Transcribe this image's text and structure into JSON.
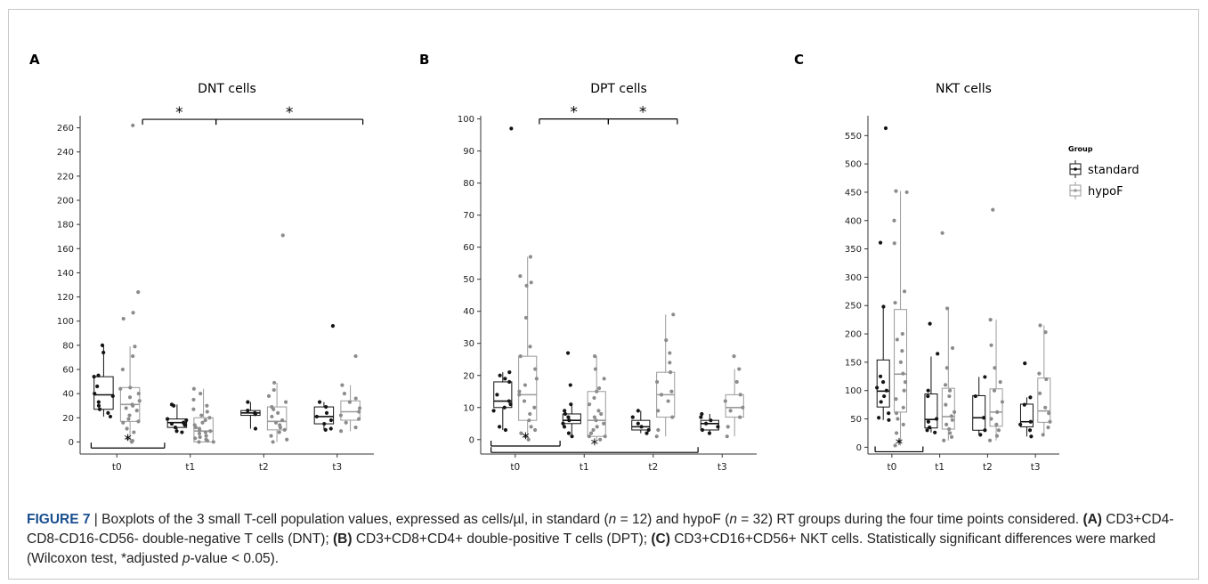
{
  "figure": {
    "caption": {
      "label": "FIGURE 7",
      "separator": " | ",
      "segments": [
        {
          "text": "Boxplots of the 3 small T-cell population values, expressed as cells/µl, in standard (",
          "style": "normal"
        },
        {
          "text": "n",
          "style": "italic"
        },
        {
          "text": " = 12) and hypoF (",
          "style": "normal"
        },
        {
          "text": "n",
          "style": "italic"
        },
        {
          "text": " = 32) RT groups during the four time points considered. ",
          "style": "normal"
        },
        {
          "text": "(A)",
          "style": "bold"
        },
        {
          "text": " CD3+CD4-CD8-CD16-CD56- double-negative T cells (DNT); ",
          "style": "normal"
        },
        {
          "text": "(B)",
          "style": "bold"
        },
        {
          "text": " CD3+CD8+CD4+ double-positive T cells (DPT); ",
          "style": "normal"
        },
        {
          "text": "(C)",
          "style": "bold"
        },
        {
          "text": " CD3+CD16+CD56+ NKT cells. Statistically significant differences were marked (Wilcoxon test, *adjusted ",
          "style": "normal"
        },
        {
          "text": "p",
          "style": "italic"
        },
        {
          "text": "-value < 0.05).",
          "style": "normal"
        }
      ]
    },
    "colors": {
      "standard": "#111111",
      "hypoF": "#9a9a9a",
      "standard_point": "#151515",
      "hypoF_point": "#8c8c8c"
    }
  },
  "chart_data": [
    {
      "type": "boxplot",
      "panel_label": "A",
      "title": "DNT cells",
      "categories": [
        "t0",
        "t1",
        "t2",
        "t3"
      ],
      "ylim": [
        -10,
        270
      ],
      "yticks": [
        0,
        20,
        40,
        60,
        80,
        100,
        120,
        140,
        160,
        180,
        200,
        220,
        240,
        260
      ],
      "series": [
        {
          "name": "standard",
          "boxes": [
            {
              "q1": 27,
              "median": 39,
              "q3": 54,
              "whisker_low": 21,
              "whisker_high": 80,
              "points": [
                80,
                74,
                55,
                54,
                46,
                40,
                38,
                33,
                30,
                27,
                24,
                21
              ]
            },
            {
              "q1": 12,
              "median": 16,
              "q3": 19,
              "whisker_low": 8,
              "whisker_high": 31,
              "points": [
                31,
                30,
                19,
                18,
                16,
                15,
                14,
                12,
                9,
                8
              ]
            },
            {
              "q1": 22,
              "median": 24,
              "q3": 26,
              "whisker_low": 11,
              "whisker_high": 33,
              "points": [
                33,
                26,
                24,
                23,
                11
              ]
            },
            {
              "q1": 15,
              "median": 21,
              "q3": 29,
              "whisker_low": 10,
              "whisker_high": 33,
              "points": [
                96,
                33,
                29,
                24,
                21,
                18,
                15,
                11,
                10
              ]
            }
          ]
        },
        {
          "name": "hypoF",
          "boxes": [
            {
              "q1": 17,
              "median": 31,
              "q3": 45,
              "whisker_low": 0,
              "whisker_high": 79,
              "points": [
                262,
                124,
                107,
                102,
                79,
                71,
                60,
                45,
                44,
                40,
                37,
                34,
                31,
                30,
                28,
                26,
                22,
                19,
                17,
                16,
                11,
                8,
                3,
                1,
                0
              ]
            },
            {
              "q1": 0,
              "median": 9,
              "q3": 20,
              "whisker_low": 0,
              "whisker_high": 44,
              "points": [
                44,
                40,
                35,
                30,
                27,
                25,
                22,
                20,
                18,
                16,
                14,
                12,
                11,
                10,
                9,
                8,
                7,
                5,
                4,
                3,
                2,
                1,
                0,
                0
              ]
            },
            {
              "q1": 10,
              "median": 17,
              "q3": 29,
              "whisker_low": 0,
              "whisker_high": 49,
              "points": [
                171,
                49,
                43,
                38,
                33,
                29,
                27,
                24,
                21,
                18,
                16,
                14,
                12,
                10,
                8,
                5,
                2,
                0
              ]
            },
            {
              "q1": 18,
              "median": 25,
              "q3": 34,
              "whisker_low": 9,
              "whisker_high": 47,
              "points": [
                71,
                47,
                40,
                36,
                33,
                28,
                25,
                22,
                19,
                16,
                12,
                9
              ]
            }
          ]
        }
      ],
      "significance": [
        {
          "y": 267,
          "from": 0.85,
          "to": 1.85,
          "label": "*"
        },
        {
          "y": 267,
          "from": 1.85,
          "to": 3.85,
          "label": "*"
        },
        {
          "y": -5,
          "from": 0.15,
          "to": 1.15,
          "label": "*"
        }
      ],
      "legend": null
    },
    {
      "type": "boxplot",
      "panel_label": "B",
      "title": "DPT cells",
      "categories": [
        "t0",
        "t1",
        "t2",
        "t3"
      ],
      "ylim": [
        -4.5,
        101
      ],
      "yticks": [
        0,
        10,
        20,
        30,
        40,
        50,
        60,
        70,
        80,
        90,
        100
      ],
      "series": [
        {
          "name": "standard",
          "boxes": [
            {
              "q1": 10,
              "median": 12,
              "q3": 18,
              "whisker_low": 3,
              "whisker_high": 21,
              "points": [
                97,
                21,
                20,
                19,
                18,
                14,
                12,
                11,
                10,
                9,
                4,
                3
              ]
            },
            {
              "q1": 5,
              "median": 6,
              "q3": 8,
              "whisker_low": 1,
              "whisker_high": 11,
              "points": [
                27,
                17,
                11,
                9,
                8,
                7,
                6,
                5,
                4,
                2,
                1
              ]
            },
            {
              "q1": 3,
              "median": 4,
              "q3": 6,
              "whisker_low": 2,
              "whisker_high": 9,
              "points": [
                9,
                7,
                5,
                4,
                3,
                2
              ]
            },
            {
              "q1": 3,
              "median": 5,
              "q3": 6,
              "whisker_low": 2,
              "whisker_high": 8,
              "points": [
                8,
                7,
                6,
                5,
                4,
                3,
                2
              ]
            }
          ]
        },
        {
          "name": "hypoF",
          "boxes": [
            {
              "q1": 6,
              "median": 14,
              "q3": 26,
              "whisker_low": 0,
              "whisker_high": 57,
              "points": [
                57,
                51,
                49,
                48,
                38,
                29,
                26,
                22,
                19,
                17,
                15,
                14,
                12,
                10,
                8,
                6,
                4,
                3,
                2,
                1,
                0
              ]
            },
            {
              "q1": 1,
              "median": 6,
              "q3": 15,
              "whisker_low": 0,
              "whisker_high": 26,
              "points": [
                26,
                22,
                19,
                16,
                15,
                13,
                11,
                9,
                8,
                7,
                6,
                5,
                4,
                3,
                2,
                1,
                1,
                0
              ]
            },
            {
              "q1": 7,
              "median": 14,
              "q3": 21,
              "whisker_low": 1,
              "whisker_high": 39,
              "points": [
                39,
                31,
                27,
                24,
                21,
                18,
                15,
                14,
                12,
                9,
                7,
                3,
                1
              ]
            },
            {
              "q1": 7,
              "median": 10,
              "q3": 14,
              "whisker_low": 1,
              "whisker_high": 22,
              "points": [
                26,
                22,
                18,
                14,
                12,
                10,
                9,
                7,
                4,
                1
              ]
            }
          ]
        }
      ],
      "significance": [
        {
          "y": 100,
          "from": 0.85,
          "to": 1.85,
          "label": "*"
        },
        {
          "y": 100,
          "from": 1.85,
          "to": 2.85,
          "label": "*"
        },
        {
          "y": -2,
          "from": 0.15,
          "to": 1.15,
          "label": "*"
        },
        {
          "y": -4,
          "from": 0.15,
          "to": 3.15,
          "label": "*"
        }
      ],
      "legend": null
    },
    {
      "type": "boxplot",
      "panel_label": "C",
      "title": "NKT cells",
      "categories": [
        "t0",
        "t1",
        "t2",
        "t3"
      ],
      "ylim": [
        -12,
        585
      ],
      "yticks": [
        0,
        50,
        100,
        150,
        200,
        250,
        300,
        350,
        400,
        450,
        500,
        550
      ],
      "series": [
        {
          "name": "standard",
          "boxes": [
            {
              "q1": 71,
              "median": 99,
              "q3": 154,
              "whisker_low": 48,
              "whisker_high": 250,
              "points": [
                563,
                361,
                248,
                125,
                115,
                105,
                100,
                90,
                80,
                60,
                52,
                48
              ]
            },
            {
              "q1": 34,
              "median": 49,
              "q3": 94,
              "whisker_low": 26,
              "whisker_high": 160,
              "points": [
                218,
                165,
                100,
                90,
                50,
                45,
                35,
                30,
                26
              ]
            },
            {
              "q1": 30,
              "median": 52,
              "q3": 91,
              "whisker_low": 22,
              "whisker_high": 124,
              "points": [
                124,
                90,
                52,
                30,
                22
              ]
            },
            {
              "q1": 36,
              "median": 45,
              "q3": 76,
              "whisker_low": 19,
              "whisker_high": 88,
              "points": [
                148,
                88,
                75,
                45,
                40,
                30,
                19
              ]
            }
          ]
        },
        {
          "name": "hypoF",
          "boxes": [
            {
              "q1": 62,
              "median": 129,
              "q3": 243,
              "whisker_low": 3,
              "whisker_high": 452,
              "points": [
                452,
                450,
                400,
                360,
                275,
                255,
                200,
                190,
                170,
                150,
                130,
                115,
                100,
                85,
                70,
                60,
                50,
                40,
                25,
                10,
                3
              ]
            },
            {
              "q1": 32,
              "median": 54,
              "q3": 104,
              "whisker_low": 12,
              "whisker_high": 245,
              "points": [
                378,
                245,
                175,
                140,
                110,
                100,
                90,
                75,
                62,
                55,
                48,
                40,
                32,
                25,
                18,
                12
              ]
            },
            {
              "q1": 37,
              "median": 62,
              "q3": 103,
              "whisker_low": 12,
              "whisker_high": 225,
              "points": [
                419,
                225,
                180,
                140,
                115,
                100,
                80,
                62,
                50,
                40,
                30,
                20,
                12
              ]
            },
            {
              "q1": 44,
              "median": 64,
              "q3": 122,
              "whisker_low": 22,
              "whisker_high": 215,
              "points": [
                215,
                203,
                130,
                120,
                95,
                70,
                60,
                45,
                35,
                22
              ]
            }
          ]
        }
      ],
      "significance": [
        {
          "y": -8,
          "from": 0.15,
          "to": 1.15,
          "label": "*"
        }
      ],
      "legend": {
        "title": "Group",
        "entries": [
          "standard",
          "hypoF"
        ],
        "position": "right"
      }
    }
  ]
}
